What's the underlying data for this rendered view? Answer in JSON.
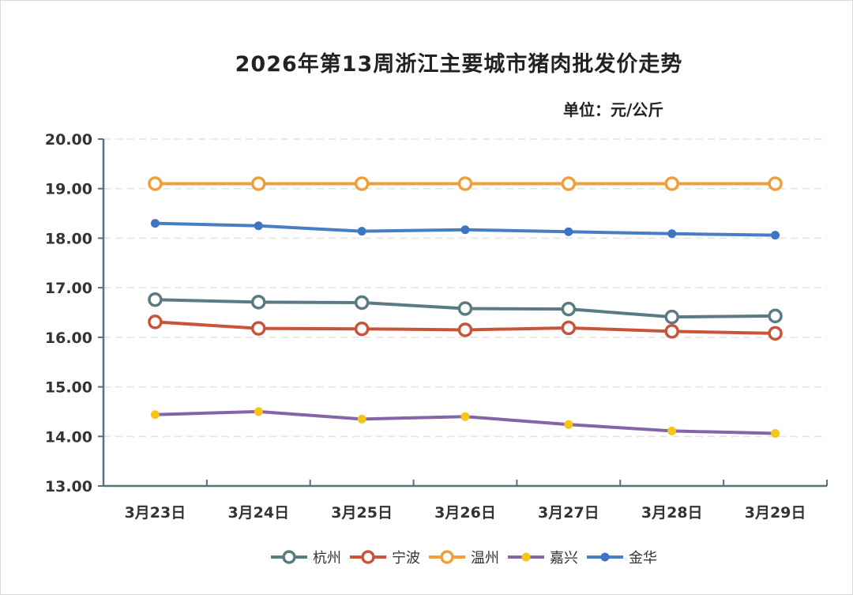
{
  "chart_data": {
    "type": "line",
    "title": "2026年第13周浙江主要城市猪肉批发价走势",
    "unit_label": "单位：元/公斤",
    "categories": [
      "3月23日",
      "3月24日",
      "3月25日",
      "3月26日",
      "3月27日",
      "3月28日",
      "3月29日"
    ],
    "ylim": [
      13,
      20
    ],
    "yticks": [
      "13.00",
      "14.00",
      "15.00",
      "16.00",
      "17.00",
      "18.00",
      "19.00",
      "20.00"
    ],
    "grid": "dashed-horizontal",
    "legend_position": "bottom",
    "series": [
      {
        "name": "杭州",
        "color": "#5b7b83",
        "marker": "hollow-circle",
        "values": [
          16.76,
          16.71,
          16.7,
          16.58,
          16.57,
          16.41,
          16.43
        ]
      },
      {
        "name": "宁波",
        "color": "#c8553a",
        "marker": "hollow-circle",
        "values": [
          16.31,
          16.18,
          16.17,
          16.15,
          16.19,
          16.12,
          16.08
        ]
      },
      {
        "name": "温州",
        "color": "#eea03c",
        "marker": "hollow-circle",
        "values": [
          19.1,
          19.1,
          19.1,
          19.1,
          19.1,
          19.1,
          19.1
        ]
      },
      {
        "name": "嘉兴",
        "color": "#8466a8",
        "marker": "filled-dot",
        "marker_color": "#f5c518",
        "values": [
          14.44,
          14.5,
          14.35,
          14.4,
          14.24,
          14.11,
          14.06
        ]
      },
      {
        "name": "金华",
        "color": "#4a7ec3",
        "marker": "filled-dot",
        "marker_color": "#3f74c5",
        "values": [
          18.3,
          18.25,
          18.14,
          18.17,
          18.13,
          18.09,
          18.06
        ]
      }
    ]
  }
}
